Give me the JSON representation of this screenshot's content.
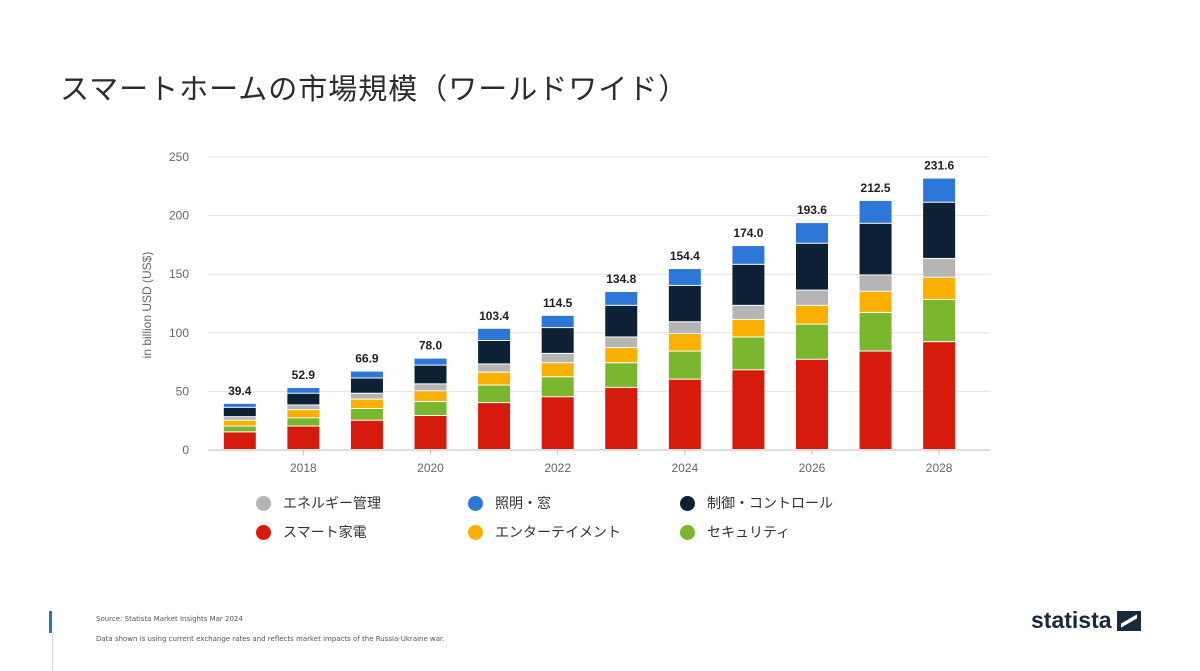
{
  "title": "スマートホームの市場規模（ワールドワイド）",
  "chart_data": {
    "type": "bar",
    "stacked": true,
    "x": [
      2017,
      2018,
      2019,
      2020,
      2021,
      2022,
      2023,
      2024,
      2025,
      2026,
      2027,
      2028
    ],
    "x_tick_labels": [
      "2018",
      "2020",
      "2022",
      "2024",
      "2026",
      "2028"
    ],
    "ylabel": "in billion USD (US$)",
    "ylim": [
      0,
      250
    ],
    "yticks": [
      0,
      50,
      100,
      150,
      200,
      250
    ],
    "grid": true,
    "totals": [
      39.4,
      52.9,
      66.9,
      78.0,
      103.4,
      114.5,
      134.8,
      154.4,
      174.0,
      193.6,
      212.5,
      231.6
    ],
    "total_labels": [
      "39.4",
      "52.9",
      "66.9",
      "78.0",
      "103.4",
      "114.5",
      "134.8",
      "154.4",
      "174.0",
      "193.6",
      "212.5",
      "231.6"
    ],
    "series": [
      {
        "name": "スマート家電",
        "color": "#d61a0c",
        "values": [
          15,
          20,
          25,
          29,
          40,
          45,
          53,
          60,
          68,
          77,
          84,
          92
        ]
      },
      {
        "name": "セキュリティ",
        "color": "#7ab72e",
        "values": [
          5,
          7,
          10,
          12,
          15,
          17,
          21,
          24,
          28,
          30,
          33,
          36
        ]
      },
      {
        "name": "エンターテイメント",
        "color": "#f9b000",
        "values": [
          5,
          7,
          8,
          9,
          11,
          12,
          13,
          15,
          15,
          16,
          18,
          19
        ]
      },
      {
        "name": "エネルギー管理",
        "color": "#b5b5b5",
        "values": [
          3,
          4,
          5,
          6,
          7,
          8,
          9,
          10,
          12,
          13,
          14,
          16
        ]
      },
      {
        "name": "制御・コントロール",
        "color": "#0d2135",
        "values": [
          8,
          10,
          13,
          16,
          20,
          22,
          27,
          31,
          35,
          40,
          44,
          48
        ]
      },
      {
        "name": "照明・窓",
        "color": "#2d77d8",
        "values": [
          3.4,
          4.9,
          5.9,
          6.0,
          10.4,
          10.5,
          11.8,
          14.4,
          16.0,
          17.6,
          19.5,
          20.6
        ]
      }
    ],
    "legend_position": "bottom",
    "legend_order": [
      "エネルギー管理",
      "照明・窓",
      "制御・コントロール",
      "スマート家電",
      "エンターテイメント",
      "セキュリティ"
    ]
  },
  "source": "Source: Statista Market Insights Mar 2024",
  "note": "Data shown is using current exchange rates and reflects market impacts of the Russia-Ukraine war.",
  "brand": "statista"
}
